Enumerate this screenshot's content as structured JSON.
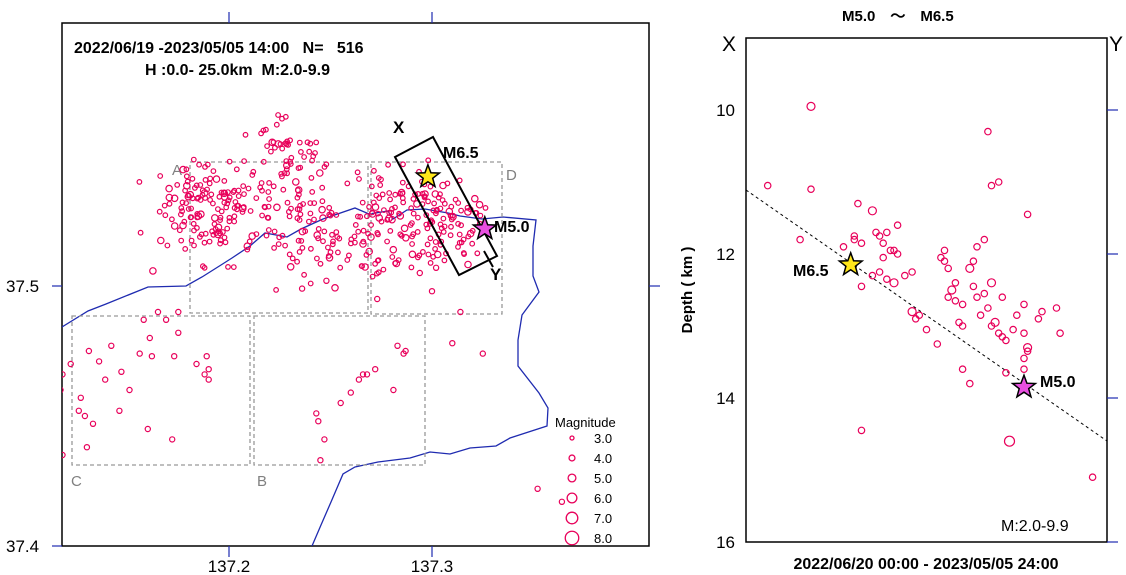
{
  "chart_data": [
    {
      "type": "scatter",
      "title_line1": "2022/06/19 -2023/05/05 14:00   N=   516",
      "title_line2": "H :0.0- 25.0km  M:2.0-9.9",
      "x_ticks": [
        "137.2",
        "137.3"
      ],
      "y_ticks": [
        "37.5",
        "37.4"
      ],
      "region_labels": [
        "A",
        "B",
        "C",
        "D"
      ],
      "cross_section_labels": {
        "start": "X",
        "end": "Y"
      },
      "events": [
        {
          "label": "M6.5",
          "lon": 137.298,
          "lat": 37.542,
          "color": "#FFE61A"
        },
        {
          "label": "M5.0",
          "lon": 137.326,
          "lat": 37.522,
          "color": "#E84FE0"
        }
      ],
      "magnitude_legend": {
        "title": "Magnitude",
        "entries": [
          "3.0",
          "4.0",
          "5.0",
          "6.0",
          "7.0",
          "8.0"
        ]
      },
      "marker_color": "#E8005A",
      "coast_color": "#1F2BB0"
    },
    {
      "type": "scatter",
      "title": "M5.0　～　M6.5",
      "axis_ends": {
        "left": "X",
        "right": "Y"
      },
      "ylabel": "Depth ( km )",
      "y_ticks": [
        "10",
        "12",
        "14",
        "16"
      ],
      "ylim": [
        9,
        16
      ],
      "xlabel": "2022/06/20 00:00 - 2023/05/05 24:00",
      "magnitude_range": "M:2.0-9.9",
      "events": [
        {
          "label": "M6.5",
          "depth": 12.15,
          "color": "#FFE61A"
        },
        {
          "label": "M5.0",
          "depth": 13.85,
          "color": "#E84FE0"
        }
      ],
      "points_depth": [
        9.95,
        11.05,
        11.1,
        11.8,
        11.9,
        11.85,
        11.75,
        11.8,
        11.3,
        11.4,
        11.7,
        11.75,
        11.85,
        11.95,
        12.05,
        12.3,
        12.25,
        12.45,
        12.4,
        12.35,
        14.45,
        11.7,
        11.6,
        12.0,
        11.95,
        12.3,
        12.25,
        12.8,
        12.9,
        12.85,
        13.05,
        12.05,
        11.95,
        12.1,
        12.2,
        12.4,
        12.5,
        12.6,
        12.65,
        12.7,
        12.95,
        13.0,
        13.6,
        13.8,
        13.25,
        12.2,
        12.1,
        11.9,
        11.8,
        12.45,
        12.55,
        12.6,
        12.75,
        12.85,
        12.95,
        13.0,
        13.1,
        13.15,
        13.2,
        13.65,
        10.3,
        11.05,
        11.0,
        12.4,
        12.6,
        12.85,
        13.05,
        13.1,
        13.35,
        13.6,
        14.6,
        12.9,
        13.3,
        13.45,
        12.7,
        12.8,
        12.75,
        13.1,
        11.45,
        15.1
      ]
    }
  ]
}
